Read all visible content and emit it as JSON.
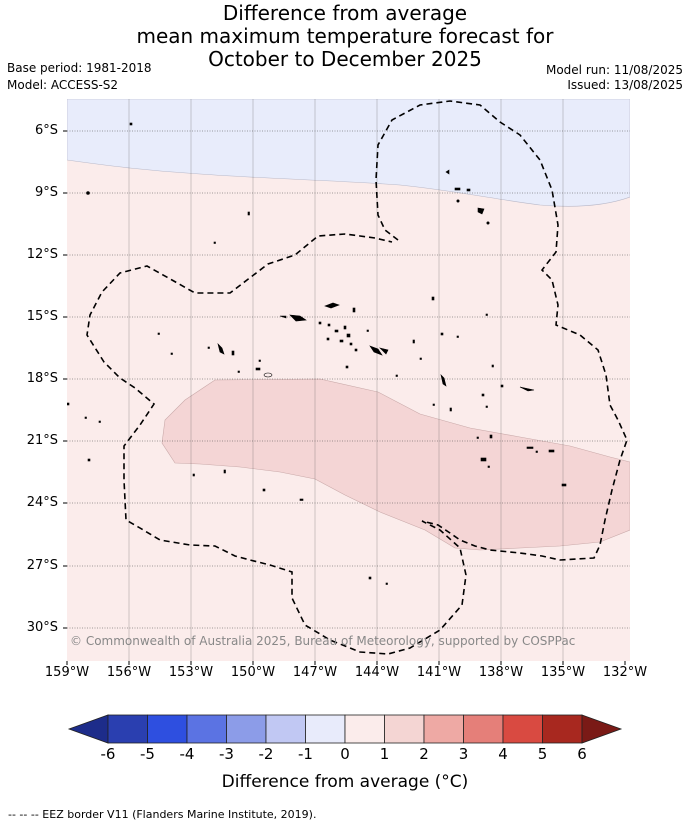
{
  "title": {
    "line1": "Difference from average",
    "line2": "mean maximum temperature forecast for",
    "line3": "October to December 2025"
  },
  "meta": {
    "base_period": "Base period: 1981-2018",
    "model": "Model: ACCESS-S2",
    "model_run": "Model run: 11/08/2025",
    "issued": "Issued: 13/08/2025"
  },
  "map": {
    "lat_labels": [
      "6°S",
      "9°S",
      "12°S",
      "15°S",
      "18°S",
      "21°S",
      "24°S",
      "27°S",
      "30°S"
    ],
    "lon_labels": [
      "159°W",
      "156°W",
      "153°W",
      "150°W",
      "147°W",
      "144°W",
      "141°W",
      "138°W",
      "135°W",
      "132°W"
    ],
    "copyright": "© Commonwealth of Australia 2025, Bureau of Meteorology, supported by COSPPac",
    "colors": {
      "light_blue": "#e8ecfb",
      "light_pink": "#fbeceb",
      "mid_pink": "#f4d6d6",
      "gridline": "#444444"
    }
  },
  "colorbar": {
    "ticks": [
      "-6",
      "-5",
      "-4",
      "-3",
      "-2",
      "-1",
      "0",
      "1",
      "2",
      "3",
      "4",
      "5",
      "6"
    ],
    "colors": [
      "#1d2c8a",
      "#2a3fb0",
      "#2e4fe0",
      "#5b73e3",
      "#8c9ce8",
      "#c1c8f3",
      "#e8ebfb",
      "#fbeceb",
      "#f4d5d3",
      "#eea9a4",
      "#e57f79",
      "#d94a41",
      "#a8281f",
      "#7a1a16"
    ],
    "title": "Difference from average (°C)"
  },
  "footer": {
    "legend": "-- -- -- EEZ border V11 (Flanders Marine Institute, 2019)."
  }
}
